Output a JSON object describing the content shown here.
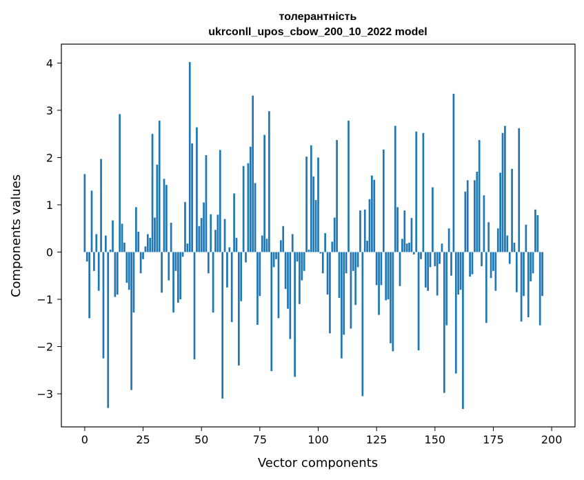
{
  "chart_data": {
    "type": "bar",
    "title": "толерантність",
    "subtitle": "ukrconll_upos_cbow_200_10_2022 model",
    "xlabel": "Vector components",
    "ylabel": "Components values",
    "xlim": [
      -10,
      210
    ],
    "ylim": [
      -3.7,
      4.4
    ],
    "xticks": [
      0,
      25,
      50,
      75,
      100,
      125,
      150,
      175,
      200
    ],
    "yticks": [
      -3,
      -2,
      -1,
      0,
      1,
      2,
      3,
      4
    ],
    "bar_color": "#1f77b4",
    "grid": false,
    "legend": "none",
    "values": [
      1.65,
      -0.2,
      -1.4,
      1.3,
      -0.4,
      0.38,
      -0.82,
      1.97,
      -2.25,
      0.35,
      -3.3,
      0.05,
      0.67,
      -0.95,
      -0.9,
      2.92,
      0.6,
      0.2,
      -0.65,
      -0.8,
      -2.92,
      -1.28,
      0.95,
      0.43,
      -0.45,
      -0.15,
      0.12,
      0.38,
      0.3,
      2.5,
      0.73,
      1.85,
      2.78,
      -0.86,
      1.55,
      1.42,
      -0.6,
      0.62,
      -1.28,
      -0.4,
      -1.07,
      -1.0,
      -0.1,
      1.06,
      0.18,
      4.02,
      2.3,
      -2.27,
      2.64,
      0.55,
      0.72,
      1.05,
      2.05,
      -0.45,
      0.8,
      -1.28,
      0.47,
      0.79,
      2.16,
      -3.1,
      0.7,
      -0.75,
      0.1,
      -1.48,
      1.24,
      0.3,
      -2.4,
      -1.04,
      1.82,
      -0.22,
      1.88,
      2.23,
      3.31,
      1.46,
      -1.54,
      -0.93,
      0.35,
      2.48,
      0.28,
      2.98,
      -2.52,
      -0.32,
      -0.15,
      -1.4,
      0.25,
      0.55,
      -0.78,
      -1.2,
      -1.84,
      0.38,
      -2.64,
      -0.2,
      -1.1,
      -0.6,
      -0.4,
      2.02,
      0.05,
      2.26,
      1.6,
      1.1,
      2.0,
      -0.03,
      -0.45,
      0.4,
      -0.9,
      -1.72,
      0.22,
      0.73,
      2.37,
      -0.97,
      -2.25,
      -1.75,
      -0.45,
      2.78,
      -1.62,
      -0.4,
      -1.12,
      -0.32,
      0.88,
      -3.05,
      0.9,
      0.24,
      1.12,
      1.62,
      1.53,
      -0.7,
      -1.33,
      -0.7,
      2.17,
      -1.02,
      -1.0,
      -1.93,
      -2.1,
      2.67,
      0.95,
      -0.72,
      0.28,
      0.88,
      0.18,
      0.2,
      0.72,
      -0.05,
      2.55,
      -2.08,
      -0.15,
      2.52,
      -0.75,
      -0.82,
      -0.32,
      1.37,
      -0.3,
      -0.92,
      -0.25,
      0.18,
      -2.98,
      -1.55,
      0.5,
      -0.5,
      3.35,
      -2.57,
      -0.9,
      -0.8,
      -3.32,
      1.28,
      1.52,
      -0.52,
      -0.47,
      1.52,
      1.7,
      2.37,
      -0.3,
      1.2,
      -1.5,
      0.63,
      -0.55,
      -0.4,
      -0.82,
      0.5,
      1.68,
      2.52,
      2.67,
      0.35,
      -0.25,
      1.76,
      0.2,
      -0.85,
      2.62,
      -1.47,
      -0.93,
      0.58,
      -1.38,
      -0.62,
      -0.45,
      0.9,
      0.78,
      -1.55,
      -0.93
    ]
  }
}
